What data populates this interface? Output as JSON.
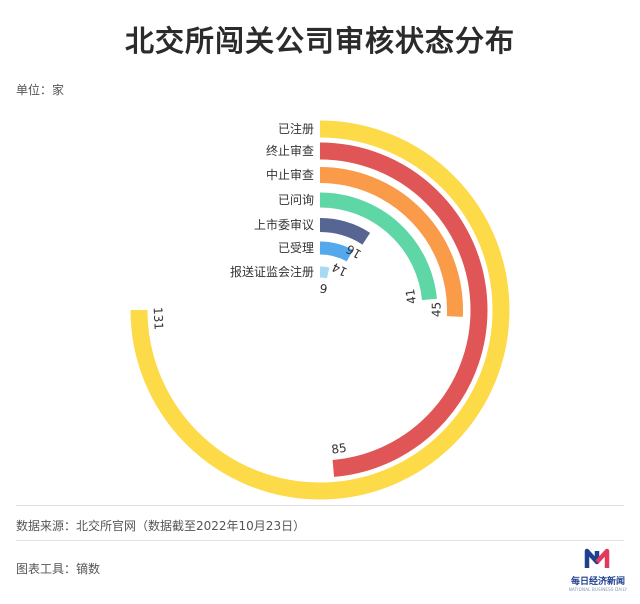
{
  "header": {
    "title": "北交所闯关公司审核状态分布",
    "unit": "单位：家"
  },
  "footer": {
    "source": "数据来源：北交所官网（数据截至2022年10月23日）",
    "tool": "图表工具：镝数"
  },
  "logo": {
    "name": "每日经济新闻",
    "sub": "NATIONAL BUSINESS DAILY"
  },
  "chart_data": {
    "type": "radial-bar",
    "title": "北交所闯关公司审核状态分布",
    "unit": "家",
    "categories": [
      "已注册",
      "终止审查",
      "中止审查",
      "已问询",
      "上市委审议",
      "已受理",
      "报送证监会注册"
    ],
    "values": [
      131,
      85,
      45,
      41,
      16,
      14,
      6
    ],
    "colors": [
      "#FDDA47",
      "#E05656",
      "#FA9B4A",
      "#5FD6A6",
      "#566592",
      "#54A8EC",
      "#A6DAF4"
    ],
    "max": 131
  }
}
